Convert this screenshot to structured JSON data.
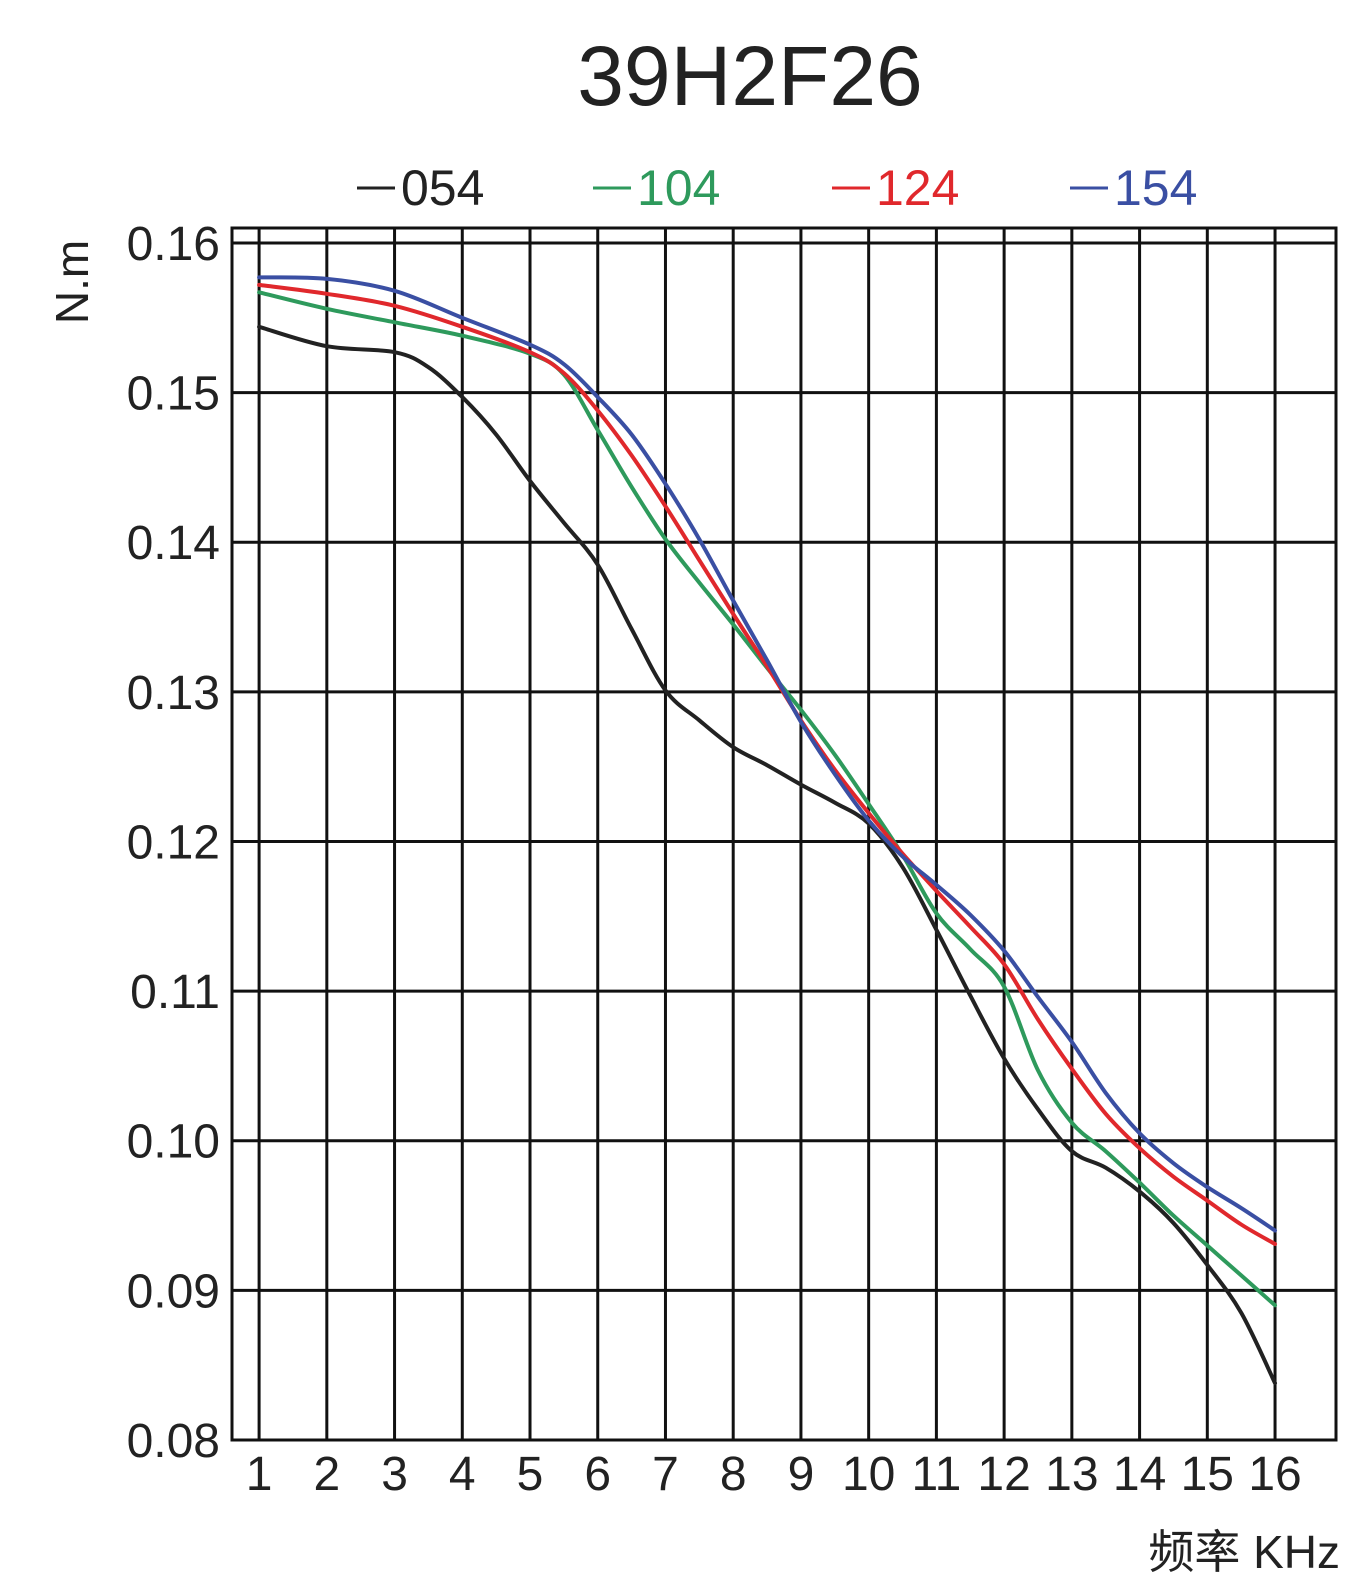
{
  "chart_data": {
    "type": "line",
    "title": "39H2F26",
    "xlabel": "频率 KHz",
    "ylabel": "N.m",
    "x_ticks": [
      "1",
      "2",
      "3",
      "4",
      "5",
      "6",
      "7",
      "8",
      "9",
      "10",
      "11",
      "12",
      "13",
      "14",
      "15",
      "16"
    ],
    "y_ticks": [
      "0.08",
      "0.09",
      "0.10",
      "0.11",
      "0.12",
      "0.13",
      "0.14",
      "0.15",
      "0.16"
    ],
    "xlim": [
      0.6,
      16.9
    ],
    "ylim": [
      0.08,
      0.161
    ],
    "grid": true,
    "legend_position": "top",
    "series": [
      {
        "name": "054",
        "color": "#222222",
        "x": [
          1,
          2,
          3,
          3.5,
          4,
          4.5,
          5,
          5.5,
          6,
          6.5,
          7,
          7.5,
          8,
          8.5,
          9,
          9.5,
          10,
          10.5,
          11,
          11.5,
          12,
          12.5,
          13,
          13.5,
          14,
          14.5,
          15,
          15.5,
          16
        ],
        "y": [
          0.1544,
          0.1531,
          0.1527,
          0.1517,
          0.1497,
          0.1472,
          0.1441,
          0.1413,
          0.1385,
          0.1342,
          0.1301,
          0.1281,
          0.1263,
          0.1251,
          0.1238,
          0.1226,
          0.1212,
          0.1183,
          0.1141,
          0.1097,
          0.1055,
          0.1021,
          0.0993,
          0.0982,
          0.0966,
          0.0945,
          0.0917,
          0.0885,
          0.0838
        ]
      },
      {
        "name": "104",
        "color": "#2e9a5c",
        "x": [
          1,
          2,
          3,
          4,
          5,
          5.5,
          6,
          6.5,
          7,
          7.5,
          8,
          8.5,
          9,
          9.5,
          10,
          10.5,
          11,
          11.5,
          12,
          12.5,
          13,
          13.5,
          14,
          14.5,
          15,
          15.5,
          16
        ],
        "y": [
          0.1567,
          0.1556,
          0.1547,
          0.1538,
          0.1526,
          0.1512,
          0.1475,
          0.1437,
          0.1402,
          0.1373,
          0.1345,
          0.1316,
          0.1288,
          0.1258,
          0.1225,
          0.1191,
          0.1152,
          0.1128,
          0.1103,
          0.1047,
          0.1012,
          0.0993,
          0.0972,
          0.095,
          0.093,
          0.091,
          0.089
        ]
      },
      {
        "name": "124",
        "color": "#e0282c",
        "x": [
          1,
          2,
          3,
          4,
          5,
          5.5,
          6,
          6.5,
          7,
          7.5,
          8,
          8.5,
          9,
          9.5,
          10,
          10.5,
          11,
          11.5,
          12,
          12.5,
          13,
          13.5,
          14,
          14.5,
          15,
          15.5,
          16
        ],
        "y": [
          0.1572,
          0.1566,
          0.1558,
          0.1544,
          0.1527,
          0.1513,
          0.1488,
          0.1458,
          0.1424,
          0.1388,
          0.1352,
          0.1317,
          0.1281,
          0.1248,
          0.1219,
          0.1192,
          0.1167,
          0.1143,
          0.1118,
          0.1081,
          0.1048,
          0.1018,
          0.0995,
          0.0976,
          0.096,
          0.0944,
          0.0931
        ]
      },
      {
        "name": "154",
        "color": "#3a4fa3",
        "x": [
          1,
          2,
          3,
          4,
          5,
          5.5,
          6,
          6.5,
          7,
          7.5,
          8,
          8.5,
          9,
          9.5,
          10,
          10.5,
          11,
          11.5,
          12,
          12.5,
          13,
          13.5,
          14,
          14.5,
          15,
          15.5,
          16
        ],
        "y": [
          0.1577,
          0.1576,
          0.1568,
          0.155,
          0.1532,
          0.1519,
          0.1497,
          0.1472,
          0.1439,
          0.1402,
          0.1361,
          0.1321,
          0.128,
          0.1245,
          0.1214,
          0.119,
          0.1171,
          0.1151,
          0.1127,
          0.1096,
          0.1066,
          0.1032,
          0.1005,
          0.0985,
          0.0969,
          0.0955,
          0.094
        ]
      }
    ]
  }
}
